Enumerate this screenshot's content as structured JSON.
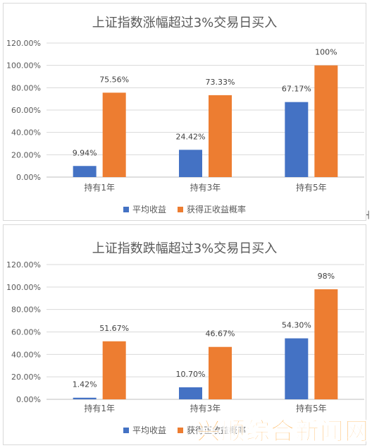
{
  "colors": {
    "series_0": "#4472c4",
    "series_1": "#ed7d31",
    "grid": "#d9d9d9",
    "text": "#595959"
  },
  "watermark": "兴顺综合新闻网",
  "chart_data": [
    {
      "type": "bar",
      "title": "上证指数涨幅超过3%交易日买入",
      "categories": [
        "持有1年",
        "持有3年",
        "持有5年"
      ],
      "series": [
        {
          "name": "平均收益",
          "values": [
            9.94,
            24.42,
            67.17
          ],
          "labels": [
            "9.94%",
            "24.42%",
            "67.17%"
          ]
        },
        {
          "name": "获得正收益概率",
          "values": [
            75.56,
            73.33,
            100
          ],
          "labels": [
            "75.56%",
            "73.33%",
            "100%"
          ]
        }
      ],
      "yticks": [
        "0.00%",
        "20.00%",
        "40.00%",
        "60.00%",
        "80.00%",
        "100.00%",
        "120.00%"
      ],
      "ylim": [
        0,
        120
      ],
      "grid": true,
      "legend": "bottom"
    },
    {
      "type": "bar",
      "title": "上证指数跌幅超过3%交易日买入",
      "categories": [
        "持有1年",
        "持有3年",
        "持有5年"
      ],
      "series": [
        {
          "name": "平均收益",
          "values": [
            1.42,
            10.7,
            54.3
          ],
          "labels": [
            "1.42%",
            "10.70%",
            "54.30%"
          ]
        },
        {
          "name": "获得正收益概率",
          "values": [
            51.67,
            46.67,
            98
          ],
          "labels": [
            "51.67%",
            "46.67%",
            "98%"
          ]
        }
      ],
      "yticks": [
        "0.00%",
        "20.00%",
        "40.00%",
        "60.00%",
        "80.00%",
        "100.00%",
        "120.00%"
      ],
      "ylim": [
        0,
        120
      ],
      "grid": true,
      "legend": "bottom"
    }
  ]
}
